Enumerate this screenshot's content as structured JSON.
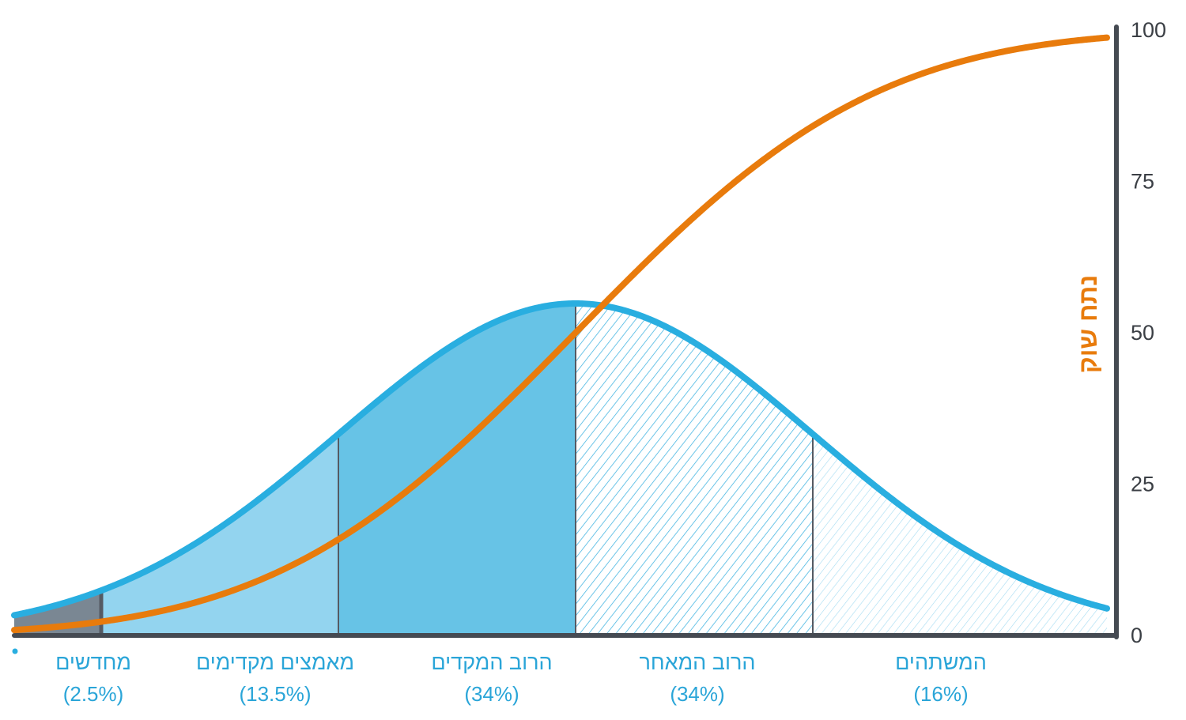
{
  "chart_data": {
    "type": "area",
    "direction": "rtl",
    "y_axis": {
      "side": "right",
      "range": [
        0,
        100
      ],
      "ticks": [
        "0",
        "25",
        "50",
        "75",
        "100"
      ],
      "label": "נתח שוק"
    },
    "distribution_curve": {
      "kind": "bell",
      "color": "#29aee0",
      "peak_position_sigma": 0
    },
    "adoption_curve": {
      "kind": "cumulative",
      "color": "#e87b0c",
      "y_range": [
        0,
        100
      ]
    },
    "segments": [
      {
        "name": "מחדשים",
        "percent": "(2.5%)",
        "share": 2.5,
        "sigma_from": -4,
        "sigma_to": -2,
        "fill": "#7a8793",
        "style": "solid"
      },
      {
        "name": "מאמצים מקדימים",
        "percent": "(13.5%)",
        "share": 13.5,
        "sigma_from": -2,
        "sigma_to": -1,
        "fill": "#93d4ef",
        "style": "solid"
      },
      {
        "name": "הרוב המקדים",
        "percent": "(34%)",
        "share": 34,
        "sigma_from": -1,
        "sigma_to": 0,
        "fill": "#67c3e6",
        "style": "solid"
      },
      {
        "name": "הרוב המאחר",
        "percent": "(34%)",
        "share": 34,
        "sigma_from": 0,
        "sigma_to": 1,
        "fill": "#29aee0",
        "style": "hatched"
      },
      {
        "name": "המשתהים",
        "percent": "(16%)",
        "share": 16,
        "sigma_from": 1,
        "sigma_to": 4,
        "fill": "#7fd0ee",
        "style": "hatched-light"
      }
    ],
    "colors": {
      "axis": "#454a52",
      "label_text": "#2aa5d8",
      "ylabel": "#e87b0c"
    }
  }
}
